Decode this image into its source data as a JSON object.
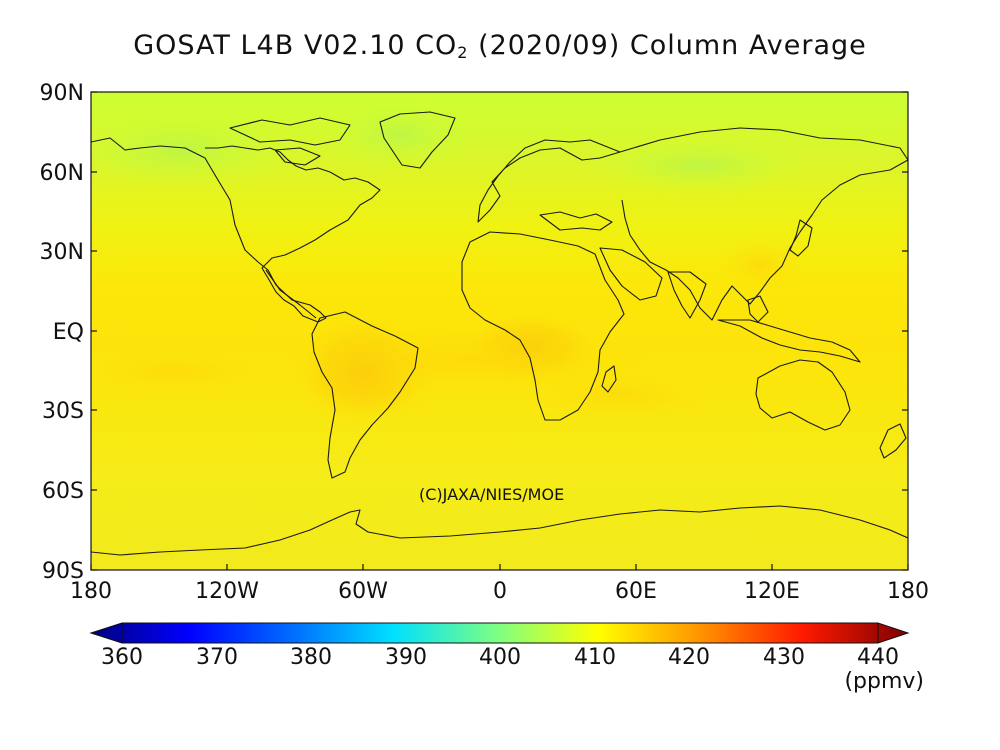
{
  "title": {
    "main": "GOSAT L4B V02.10 CO",
    "subscript": "2",
    "period": "(2020/09)",
    "suffix": "Column Average"
  },
  "axes": {
    "y_ticks": [
      "90N",
      "60N",
      "30N",
      "EQ",
      "30S",
      "60S",
      "90S"
    ],
    "x_ticks": [
      "180",
      "120W",
      "60W",
      "0",
      "60E",
      "120E",
      "180"
    ]
  },
  "credit": "(C)JAXA/NIES/MOE",
  "colorbar": {
    "ticks": [
      "360",
      "370",
      "380",
      "390",
      "400",
      "410",
      "420",
      "430",
      "440"
    ],
    "unit": "(ppmv)",
    "colors": [
      "#00007f",
      "#0000ff",
      "#0080ff",
      "#00ffff",
      "#80ff80",
      "#ffff00",
      "#ff8000",
      "#ff0000",
      "#7f0000"
    ]
  },
  "chart_data": {
    "type": "heatmap",
    "title": "GOSAT L4B V02.10 CO2 (2020/09) Column Average",
    "xlabel": "",
    "ylabel": "",
    "xlim": [
      -180,
      180
    ],
    "ylim": [
      -90,
      90
    ],
    "colorbar_range": [
      360,
      440
    ],
    "unit": "ppmv",
    "approximate_field": {
      "arctic_north_america_europe": 405,
      "northern_midlatitudes": 408,
      "tropics_background": 411,
      "south_america_tropics": 414,
      "central_africa": 414,
      "southern_ocean_antarctica": 410
    }
  }
}
